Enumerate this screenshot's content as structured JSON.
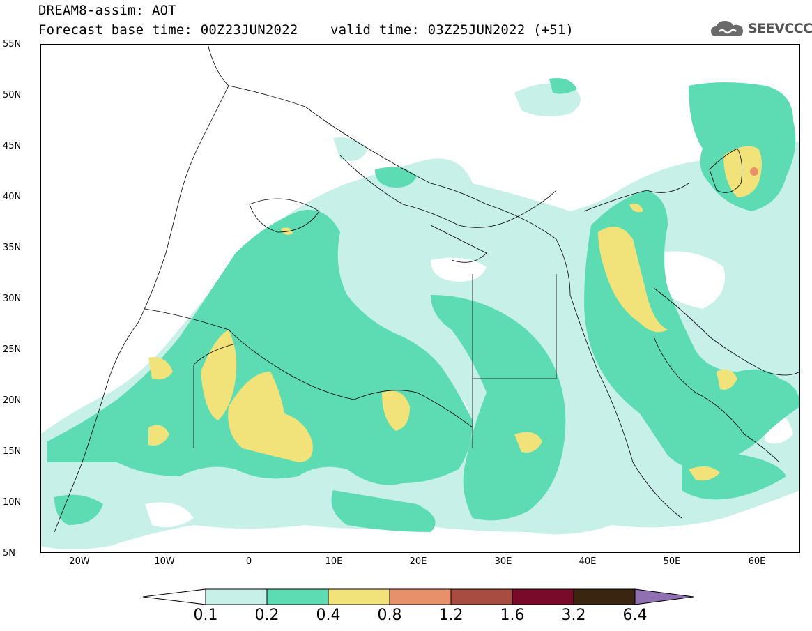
{
  "title": {
    "line1": "DREAM8-assim: AOT",
    "line2": "Forecast base time: 00Z23JUN2022    valid time: 03Z25JUN2022 (+51)"
  },
  "logo": {
    "text": "SEEVCCC",
    "icon": "cloud-icon"
  },
  "axes": {
    "lat_labels": [
      "55N",
      "50N",
      "45N",
      "40N",
      "35N",
      "30N",
      "25N",
      "20N",
      "15N",
      "10N",
      "5N"
    ],
    "lon_labels": [
      "20W",
      "10W",
      "0",
      "10E",
      "20E",
      "30E",
      "40E",
      "50E",
      "60E"
    ],
    "lon_range": [
      -25,
      65
    ],
    "lat_range": [
      5,
      55
    ]
  },
  "colorbar": {
    "labels": [
      "0.1",
      "0.2",
      "0.4",
      "0.8",
      "1.2",
      "1.6",
      "3.2",
      "6.4"
    ],
    "colors": [
      "#c6f0e8",
      "#5ddcb4",
      "#f2e27a",
      "#e8906a",
      "#a84b40",
      "#7a0a2a",
      "#3a2510",
      "#9070b0"
    ]
  },
  "chart_data": {
    "type": "heatmap",
    "variable": "AOT",
    "levels": [
      0.1,
      0.2,
      0.4,
      0.8,
      1.2,
      1.6,
      3.2,
      6.4
    ],
    "hotspots": [
      {
        "lon": -2,
        "lat": 19,
        "level": "0.4-0.8"
      },
      {
        "lon": 4,
        "lat": 17,
        "level": "0.4-0.8"
      },
      {
        "lon": 17,
        "lat": 19,
        "level": "0.4-0.8"
      },
      {
        "lon": 43,
        "lat": 32,
        "level": "0.4-0.8"
      },
      {
        "lon": 60,
        "lat": 42,
        "level": "0.8-1.2"
      },
      {
        "lon": 56,
        "lat": 21,
        "level": "0.4-0.8"
      },
      {
        "lon": 33,
        "lat": 15,
        "level": "0.4-0.8"
      }
    ]
  }
}
